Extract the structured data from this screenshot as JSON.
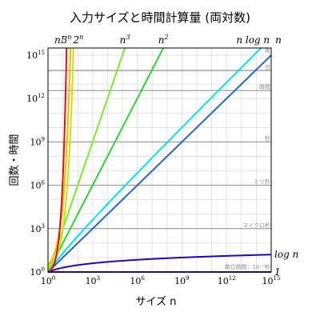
{
  "chart_data": {
    "type": "line",
    "title": "入力サイズと時間計算量 (両対数)",
    "xlabel": "サイズ n",
    "ylabel": "回数・時間",
    "xscale": "log10",
    "yscale": "log10",
    "xlim_exponent": [
      0,
      15
    ],
    "ylim_exponent": [
      0,
      15.5
    ],
    "x_ticks": [
      {
        "base": "10",
        "exp": "0",
        "value": 0
      },
      {
        "base": "10",
        "exp": "3",
        "value": 3
      },
      {
        "base": "10",
        "exp": "6",
        "value": 6
      },
      {
        "base": "10",
        "exp": "9",
        "value": 9
      },
      {
        "base": "10",
        "exp": "12",
        "value": 12
      },
      {
        "base": "10",
        "exp": "15",
        "value": 15
      }
    ],
    "y_ticks": [
      {
        "base": "10",
        "exp": "0",
        "value": 0
      },
      {
        "base": "10",
        "exp": "3",
        "value": 3
      },
      {
        "base": "10",
        "exp": "6",
        "value": 6
      },
      {
        "base": "10",
        "exp": "9",
        "value": 9
      },
      {
        "base": "10",
        "exp": "12",
        "value": 12
      },
      {
        "base": "10",
        "exp": "15",
        "value": 15
      }
    ],
    "grid": true,
    "time_units": [
      {
        "label": "単位時間：10⁻⁹秒",
        "value": 0
      },
      {
        "label": "マイクロ秒",
        "value": 3
      },
      {
        "label": "ミリ秒",
        "value": 6
      },
      {
        "label": "秒",
        "value": 9
      },
      {
        "label": "時間",
        "value": 12.556
      },
      {
        "label": "日",
        "value": 13.936
      },
      {
        "label": "年",
        "value": 16.5
      }
    ],
    "series": [
      {
        "name": "1",
        "label_parts": [
          "1",
          ""
        ],
        "func": "const",
        "color": "#7b00c8",
        "label_pos": "right"
      },
      {
        "name": "log n",
        "label_parts": [
          "log n",
          ""
        ],
        "func": "log",
        "color": "#2a00c8",
        "label_pos": "right"
      },
      {
        "name": "n",
        "label_parts": [
          "n",
          ""
        ],
        "func": "linear",
        "color": "#1e64dc",
        "label_pos": "top"
      },
      {
        "name": "n log n",
        "label_parts": [
          "n log n",
          ""
        ],
        "func": "nlogn",
        "color": "#00e5e5",
        "label_pos": "top"
      },
      {
        "name": "n2",
        "label_parts": [
          "n",
          "2"
        ],
        "func": "pow2",
        "color": "#27d827",
        "label_pos": "top"
      },
      {
        "name": "n3",
        "label_parts": [
          "n",
          "3"
        ],
        "func": "pow3",
        "color": "#73f020",
        "label_pos": "top"
      },
      {
        "name": "2n",
        "label_parts": [
          "2",
          "n"
        ],
        "func": "exp2",
        "color": "#c8e600",
        "label_pos": "top"
      },
      {
        "name": "3n",
        "label_parts": [
          "3",
          "n"
        ],
        "func": "exp3",
        "color": "#f5b800",
        "label_pos": "top"
      },
      {
        "name": "n!",
        "label_parts": [
          "n!",
          ""
        ],
        "func": "factorial",
        "color": "#e01010",
        "label_pos": "top"
      }
    ]
  }
}
